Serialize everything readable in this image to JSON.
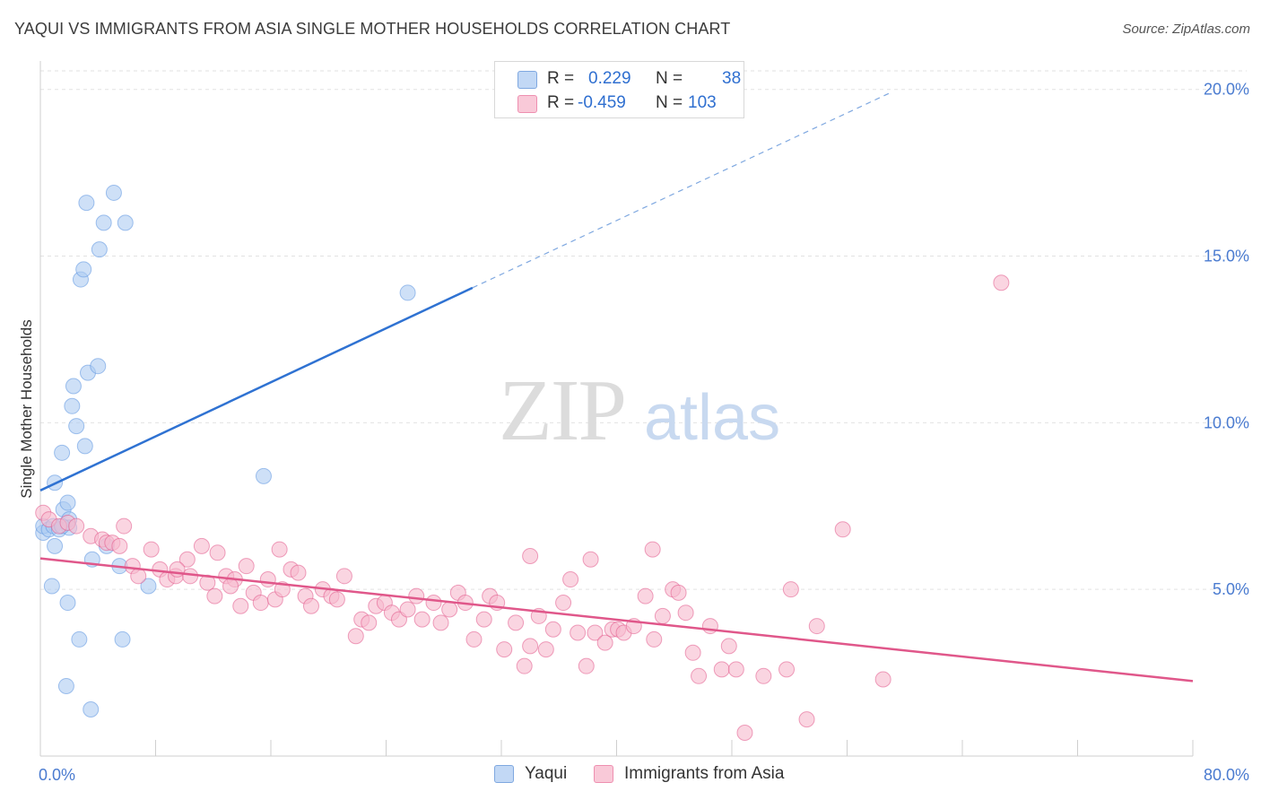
{
  "header": {
    "title": "YAQUI VS IMMIGRANTS FROM ASIA SINGLE MOTHER HOUSEHOLDS CORRELATION CHART",
    "source": "Source: ZipAtlas.com"
  },
  "watermark": {
    "zip": "ZIP",
    "atlas": "atlas"
  },
  "legend": {
    "rows": [
      {
        "r_label": "R =",
        "r_value": "0.229",
        "n_label": "N =",
        "n_value": "38",
        "color": "#aecbf2"
      },
      {
        "r_label": "R =",
        "r_value": "-0.459",
        "n_label": "N =",
        "n_value": "103",
        "color": "#f6b9cd"
      }
    ],
    "bottom": [
      {
        "label": "Yaqui",
        "color": "#aecbf2"
      },
      {
        "label": "Immigrants from Asia",
        "color": "#f6b9cd"
      }
    ]
  },
  "chart_data": {
    "type": "scatter",
    "title": "YAQUI VS IMMIGRANTS FROM ASIA SINGLE MOTHER HOUSEHOLDS CORRELATION CHART",
    "ylabel": "Single Mother Households",
    "xlabel": "",
    "xlim": [
      0,
      80
    ],
    "ylim": [
      0,
      20.8
    ],
    "x_tick_labels": [
      "0.0%",
      "80.0%"
    ],
    "y_ticks": [
      5,
      10,
      15,
      20
    ],
    "y_tick_labels": [
      "5.0%",
      "10.0%",
      "15.0%",
      "20.0%"
    ],
    "grid": true,
    "legend_position": "top-center",
    "series": [
      {
        "name": "Yaqui",
        "color": "#5b93e0",
        "fill": "#aecbf2",
        "trend": {
          "x": [
            0,
            30
          ],
          "y": [
            7.97,
            14.05
          ],
          "dashed_to": [
            59,
            19.9
          ]
        },
        "points": [
          [
            0.2,
            6.7
          ],
          [
            0.2,
            6.9
          ],
          [
            0.6,
            6.8
          ],
          [
            0.9,
            6.9
          ],
          [
            1.3,
            6.8
          ],
          [
            1.0,
            6.3
          ],
          [
            1.0,
            8.2
          ],
          [
            1.6,
            7.4
          ],
          [
            1.9,
            7.6
          ],
          [
            2.0,
            7.1
          ],
          [
            0.8,
            5.1
          ],
          [
            1.9,
            4.6
          ],
          [
            2.7,
            3.5
          ],
          [
            1.8,
            2.1
          ],
          [
            3.5,
            1.4
          ],
          [
            5.7,
            3.5
          ],
          [
            3.6,
            5.9
          ],
          [
            5.5,
            5.7
          ],
          [
            4.6,
            6.3
          ],
          [
            1.5,
            9.1
          ],
          [
            2.5,
            9.9
          ],
          [
            2.2,
            10.5
          ],
          [
            2.3,
            11.1
          ],
          [
            3.1,
            9.3
          ],
          [
            3.3,
            11.5
          ],
          [
            4.0,
            11.7
          ],
          [
            2.8,
            14.3
          ],
          [
            3.0,
            14.6
          ],
          [
            4.1,
            15.2
          ],
          [
            4.4,
            16.0
          ],
          [
            5.9,
            16.0
          ],
          [
            3.2,
            16.6
          ],
          [
            5.1,
            16.9
          ],
          [
            7.5,
            5.1
          ],
          [
            15.5,
            8.4
          ],
          [
            25.5,
            13.9
          ],
          [
            2.0,
            6.85
          ],
          [
            1.5,
            6.9
          ]
        ]
      },
      {
        "name": "Immigrants from Asia",
        "color": "#e2578a",
        "fill": "#f6b9cd",
        "trend": {
          "x": [
            0,
            80
          ],
          "y": [
            5.93,
            2.25
          ]
        },
        "points": [
          [
            0.2,
            7.3
          ],
          [
            0.6,
            7.1
          ],
          [
            1.3,
            6.9
          ],
          [
            1.9,
            7.0
          ],
          [
            2.5,
            6.9
          ],
          [
            3.5,
            6.6
          ],
          [
            4.3,
            6.5
          ],
          [
            4.6,
            6.4
          ],
          [
            5.0,
            6.4
          ],
          [
            5.8,
            6.9
          ],
          [
            5.5,
            6.3
          ],
          [
            6.4,
            5.7
          ],
          [
            6.8,
            5.4
          ],
          [
            7.7,
            6.2
          ],
          [
            8.3,
            5.6
          ],
          [
            8.8,
            5.3
          ],
          [
            9.4,
            5.4
          ],
          [
            10.2,
            5.9
          ],
          [
            10.4,
            5.4
          ],
          [
            11.2,
            6.3
          ],
          [
            11.6,
            5.2
          ],
          [
            12.1,
            4.8
          ],
          [
            12.9,
            5.4
          ],
          [
            13.5,
            5.3
          ],
          [
            13.9,
            4.5
          ],
          [
            14.3,
            5.7
          ],
          [
            14.8,
            4.9
          ],
          [
            15.3,
            4.6
          ],
          [
            15.8,
            5.3
          ],
          [
            16.3,
            4.7
          ],
          [
            16.8,
            5.0
          ],
          [
            17.4,
            5.6
          ],
          [
            17.9,
            5.5
          ],
          [
            18.4,
            4.8
          ],
          [
            18.8,
            4.5
          ],
          [
            19.6,
            5.0
          ],
          [
            20.2,
            4.8
          ],
          [
            20.6,
            4.7
          ],
          [
            21.1,
            5.4
          ],
          [
            21.9,
            3.6
          ],
          [
            22.3,
            4.1
          ],
          [
            22.8,
            4.0
          ],
          [
            23.3,
            4.5
          ],
          [
            23.9,
            4.6
          ],
          [
            24.4,
            4.3
          ],
          [
            24.9,
            4.1
          ],
          [
            25.5,
            4.4
          ],
          [
            26.1,
            4.8
          ],
          [
            26.5,
            4.1
          ],
          [
            27.3,
            4.6
          ],
          [
            27.8,
            4.0
          ],
          [
            28.4,
            4.4
          ],
          [
            29.0,
            4.9
          ],
          [
            29.5,
            4.6
          ],
          [
            30.1,
            3.5
          ],
          [
            30.8,
            4.1
          ],
          [
            31.2,
            4.8
          ],
          [
            31.7,
            4.6
          ],
          [
            32.2,
            3.2
          ],
          [
            33.0,
            4.0
          ],
          [
            33.6,
            2.7
          ],
          [
            34.0,
            3.3
          ],
          [
            34.6,
            4.2
          ],
          [
            35.1,
            3.2
          ],
          [
            35.6,
            3.8
          ],
          [
            36.3,
            4.6
          ],
          [
            36.8,
            5.3
          ],
          [
            37.3,
            3.7
          ],
          [
            37.9,
            2.7
          ],
          [
            38.5,
            3.7
          ],
          [
            39.2,
            3.4
          ],
          [
            39.7,
            3.8
          ],
          [
            40.1,
            3.8
          ],
          [
            40.5,
            3.7
          ],
          [
            41.2,
            3.9
          ],
          [
            42.0,
            4.8
          ],
          [
            42.6,
            3.5
          ],
          [
            43.2,
            4.2
          ],
          [
            43.9,
            5.0
          ],
          [
            44.3,
            4.9
          ],
          [
            44.8,
            4.3
          ],
          [
            45.3,
            3.1
          ],
          [
            45.7,
            2.4
          ],
          [
            46.5,
            3.9
          ],
          [
            47.3,
            2.6
          ],
          [
            47.8,
            3.3
          ],
          [
            48.3,
            2.6
          ],
          [
            48.9,
            0.7
          ],
          [
            50.2,
            2.4
          ],
          [
            51.8,
            2.6
          ],
          [
            52.1,
            5.0
          ],
          [
            53.2,
            1.1
          ],
          [
            53.9,
            3.9
          ],
          [
            55.7,
            6.8
          ],
          [
            58.5,
            2.3
          ],
          [
            66.7,
            14.2
          ],
          [
            16.6,
            6.2
          ],
          [
            13.2,
            5.1
          ],
          [
            9.5,
            5.6
          ],
          [
            12.3,
            6.1
          ],
          [
            34.0,
            6.0
          ],
          [
            38.2,
            5.9
          ],
          [
            42.5,
            6.2
          ]
        ]
      }
    ]
  }
}
